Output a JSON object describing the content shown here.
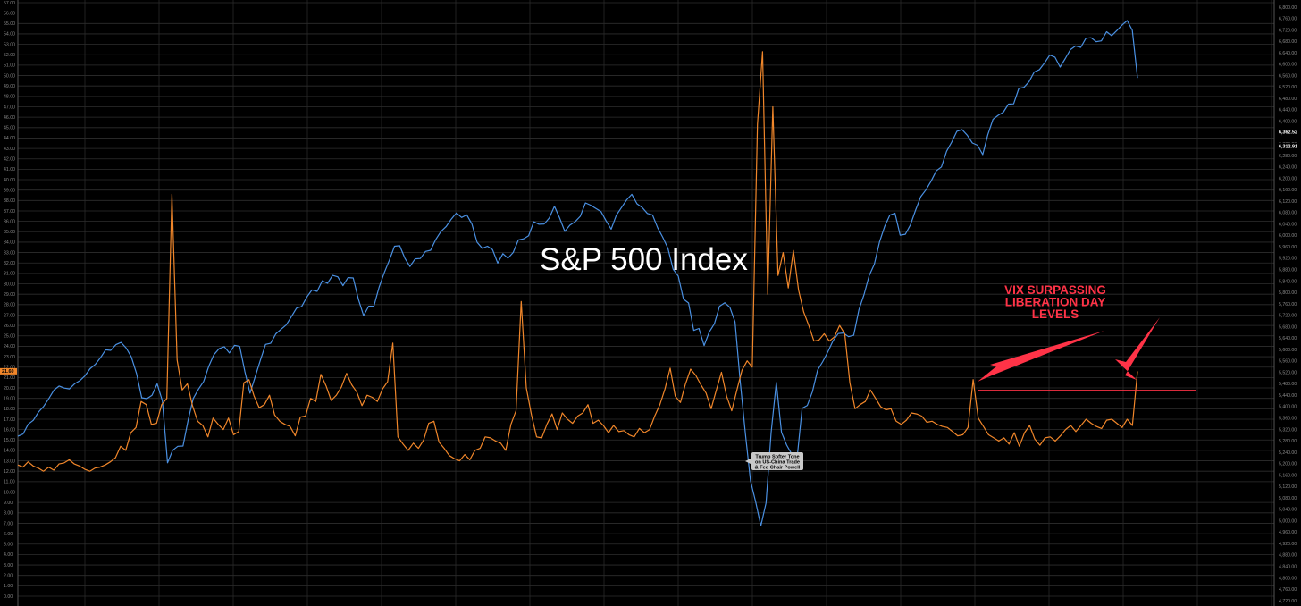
{
  "chart_data": {
    "type": "line",
    "title": "S&P 500 Index",
    "left_axis": {
      "min": 0,
      "max": 57,
      "step": 1
    },
    "right_axis": {
      "min": 4720,
      "max": 6800,
      "step": 40
    },
    "left_highlight_label": "21.60",
    "right_highlight_labels": [
      "6,362.52",
      "6,312.91"
    ],
    "grid": true,
    "series": [
      {
        "color": "#4a90e2",
        "axis": "right",
        "values": [
          5296,
          5304,
          5338,
          5352,
          5381,
          5401,
          5428,
          5458,
          5472,
          5465,
          5462,
          5480,
          5491,
          5508,
          5533,
          5548,
          5571,
          5599,
          5597,
          5617,
          5625,
          5605,
          5574,
          5516,
          5431,
          5428,
          5440,
          5480,
          5420,
          5203,
          5247,
          5261,
          5262,
          5352,
          5429,
          5461,
          5488,
          5541,
          5582,
          5603,
          5610,
          5588,
          5615,
          5611,
          5522,
          5447,
          5505,
          5563,
          5618,
          5622,
          5655,
          5671,
          5686,
          5715,
          5745,
          5751,
          5784,
          5809,
          5804,
          5841,
          5832,
          5860,
          5855,
          5824,
          5852,
          5851,
          5776,
          5719,
          5752,
          5752,
          5818,
          5869,
          5913,
          5962,
          5964,
          5920,
          5891,
          5918,
          5919,
          5944,
          5948,
          5986,
          6014,
          6031,
          6057,
          6079,
          6063,
          6072,
          6040,
          5976,
          5955,
          5962,
          5950,
          5903,
          5936,
          5920,
          5940,
          5984,
          5988,
          5999,
          6048,
          6039,
          6040,
          6061,
          6102,
          6061,
          6014,
          6036,
          6048,
          6067,
          6114,
          6106,
          6095,
          6084,
          6051,
          6022,
          6071,
          6098,
          6125,
          6144,
          6111,
          6098,
          6077,
          6072,
          6027,
          5993,
          5955,
          5882,
          5857,
          5777,
          5763,
          5667,
          5674,
          5614,
          5661,
          5690,
          5752,
          5764,
          5748,
          5697,
          5488,
          5305,
          5140,
          5066,
          4982,
          5062,
          5309,
          5485,
          5310,
          5265,
          5233,
          5215,
          5394,
          5404,
          5452,
          5528,
          5558,
          5592,
          5631,
          5656,
          5658,
          5645,
          5650,
          5739,
          5793,
          5859,
          5899,
          5977,
          6032,
          6071,
          6078,
          6001,
          6004,
          6037,
          6089,
          6136,
          6160,
          6190,
          6226,
          6240,
          6295,
          6327,
          6365,
          6371,
          6351,
          6324,
          6316,
          6283,
          6353,
          6407,
          6421,
          6432,
          6460,
          6461,
          6515,
          6519,
          6539,
          6573,
          6581,
          6605,
          6632,
          6625,
          6590,
          6620,
          6651,
          6664,
          6659,
          6691,
          6693,
          6679,
          6682,
          6714,
          6700,
          6718,
          6737,
          6753,
          6719,
          6552
        ]
      },
      {
        "color": "#f0862a",
        "axis": "left",
        "values": [
          12.6,
          12.4,
          12.9,
          12.5,
          12.3,
          12.0,
          12.4,
          12.1,
          12.7,
          12.8,
          13.1,
          12.7,
          12.5,
          12.2,
          12.0,
          12.3,
          12.4,
          12.6,
          12.9,
          13.3,
          14.4,
          14.0,
          15.7,
          16.2,
          18.7,
          18.4,
          16.5,
          16.6,
          18.4,
          19.0,
          38.6,
          22.7,
          19.8,
          20.4,
          18.3,
          16.8,
          16.4,
          15.3,
          17.1,
          16.5,
          16.0,
          17.1,
          15.5,
          15.8,
          20.5,
          20.8,
          19.2,
          18.1,
          18.4,
          19.3,
          17.4,
          16.8,
          16.5,
          16.3,
          15.4,
          17.2,
          17.3,
          19.0,
          18.7,
          21.3,
          20.2,
          18.8,
          19.3,
          20.1,
          21.4,
          20.3,
          19.6,
          18.3,
          19.3,
          19.1,
          18.7,
          19.9,
          20.6,
          24.3,
          15.3,
          14.6,
          14.0,
          14.7,
          14.2,
          15.0,
          16.6,
          16.8,
          14.8,
          14.2,
          13.5,
          13.2,
          13.0,
          13.6,
          13.1,
          14.0,
          14.2,
          15.3,
          15.2,
          14.9,
          14.7,
          14.0,
          16.5,
          17.8,
          28.3,
          20.0,
          17.4,
          15.3,
          15.2,
          16.5,
          17.5,
          16.0,
          17.6,
          17.0,
          16.6,
          17.3,
          17.6,
          18.4,
          16.6,
          16.9,
          16.4,
          15.7,
          16.4,
          15.8,
          15.9,
          15.5,
          15.3,
          16.1,
          15.7,
          16.0,
          17.3,
          18.4,
          19.9,
          21.9,
          19.2,
          18.6,
          20.4,
          21.8,
          21.2,
          20.3,
          19.5,
          18.0,
          19.8,
          21.5,
          19.2,
          17.8,
          19.8,
          21.7,
          22.6,
          22.0,
          45.3,
          52.3,
          29.0,
          47.0,
          30.8,
          33.0,
          29.6,
          33.2,
          29.4,
          27.3,
          26.0,
          24.5,
          24.6,
          25.2,
          24.5,
          24.9,
          26.0,
          25.2,
          20.5,
          18.0,
          18.4,
          18.7,
          19.8,
          19.0,
          18.2,
          17.9,
          18.0,
          16.8,
          16.5,
          16.9,
          17.6,
          17.5,
          17.3,
          16.7,
          16.8,
          16.5,
          16.3,
          16.2,
          15.8,
          15.4,
          15.5,
          16.2,
          20.8,
          17.1,
          16.3,
          15.5,
          15.2,
          14.9,
          15.2,
          14.6,
          15.7,
          14.4,
          15.7,
          16.4,
          15.1,
          14.5,
          15.2,
          15.3,
          14.9,
          15.4,
          16.0,
          16.4,
          15.8,
          16.4,
          17.0,
          16.6,
          16.3,
          16.1,
          16.9,
          17.0,
          16.6,
          16.2,
          17.0,
          16.4,
          21.6
        ]
      }
    ],
    "callout": {
      "lines": [
        "Trump Softer Tone",
        "on US-China Trade",
        "& Fed Chair Powell"
      ]
    },
    "annotation": {
      "lines": [
        "VIX SURPASSING",
        "LIBERATION DAY",
        "LEVELS"
      ],
      "color": "#ff3347"
    }
  }
}
